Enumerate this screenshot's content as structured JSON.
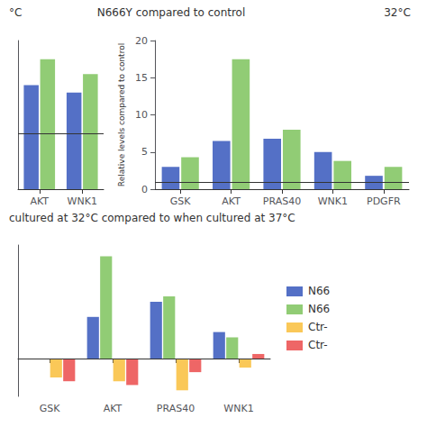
{
  "chart_data": [
    {
      "type": "bar",
      "categories": [
        "AKT",
        "WNK1"
      ],
      "series": [
        {
          "values": [
            14.0,
            13.0
          ]
        },
        {
          "values": [
            17.5,
            15.5
          ]
        }
      ],
      "hline": 7.5,
      "ylim": [
        0,
        20
      ],
      "grid": false,
      "tick_labels": "x",
      "annotations": [
        "°C"
      ]
    },
    {
      "type": "bar",
      "ylabel": "Relative levels compared to control",
      "categories": [
        "GSK",
        "AKT",
        "PRAS40",
        "WNK1",
        "PDGFR"
      ],
      "series": [
        {
          "values": [
            3.0,
            6.5,
            6.8,
            5.0,
            1.8
          ]
        },
        {
          "values": [
            4.3,
            17.5,
            8.0,
            3.8,
            3.0
          ]
        }
      ],
      "hline": 1.0,
      "ylim": [
        0,
        20
      ],
      "yticks": [
        0,
        5,
        10,
        15,
        20
      ],
      "grid": false,
      "annotations": [
        "N666Y compared to control",
        "32°C"
      ]
    },
    {
      "type": "bar",
      "categories": [
        "GSK",
        "AKT",
        "PRAS40",
        "WNK1"
      ],
      "series": [
        {
          "name": "N66",
          "values": [
            0.0,
            5.5,
            7.5,
            3.5
          ]
        },
        {
          "name": "N66",
          "values": [
            0.0,
            13.5,
            8.2,
            2.8
          ]
        },
        {
          "name": "Ctr-",
          "values": [
            -2.5,
            -3.0,
            -4.2,
            -1.2
          ]
        },
        {
          "name": "Ctr-",
          "values": [
            -3.0,
            -3.5,
            -1.8,
            0.6
          ]
        }
      ],
      "hline": 0,
      "ylim": [
        -5,
        15
      ],
      "grid": false,
      "tick_labels": "x",
      "legend": "right",
      "annotations": [
        "cultured at 32°C compared to when cultured at 37°C"
      ]
    }
  ]
}
